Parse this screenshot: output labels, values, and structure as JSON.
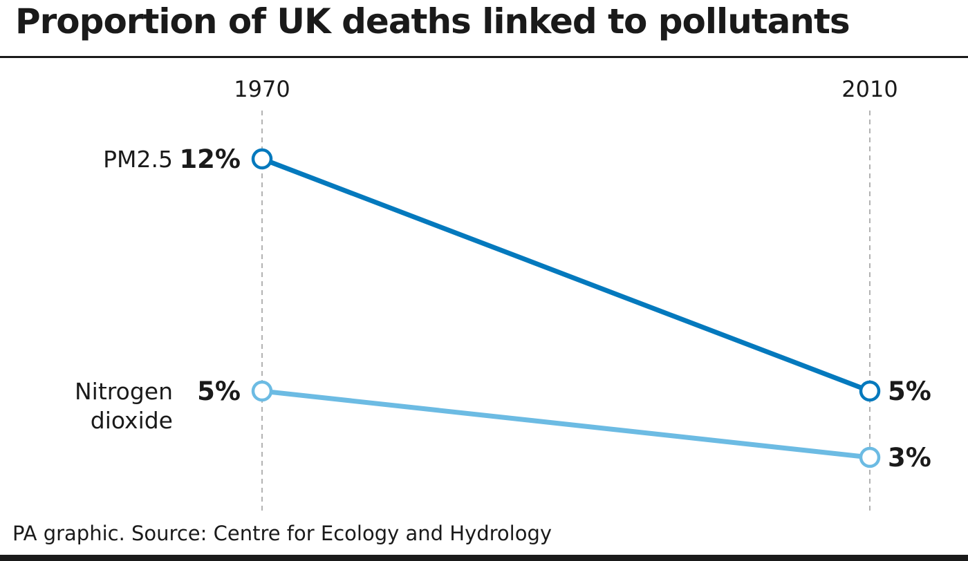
{
  "title": "Proportion of UK deaths linked to pollutants",
  "source": "PA graphic. Source: Centre for Ecology and Hydrology",
  "chart_data": {
    "type": "line",
    "title": "Proportion of UK deaths linked to pollutants",
    "x": [
      "1970",
      "2010"
    ],
    "ylabel": "",
    "series": [
      {
        "name": "PM2.5",
        "name_lines": [
          "PM2.5"
        ],
        "values": [
          12,
          5
        ],
        "value_labels": [
          "12%",
          "5%"
        ],
        "color": "#0479bd"
      },
      {
        "name": "Nitrogen dioxide",
        "name_lines": [
          "Nitrogen",
          "dioxide"
        ],
        "values": [
          5,
          3
        ],
        "value_labels": [
          "5%",
          "3%"
        ],
        "color": "#6cbbe3"
      }
    ],
    "grid_color": "#999999",
    "legend": "none"
  }
}
